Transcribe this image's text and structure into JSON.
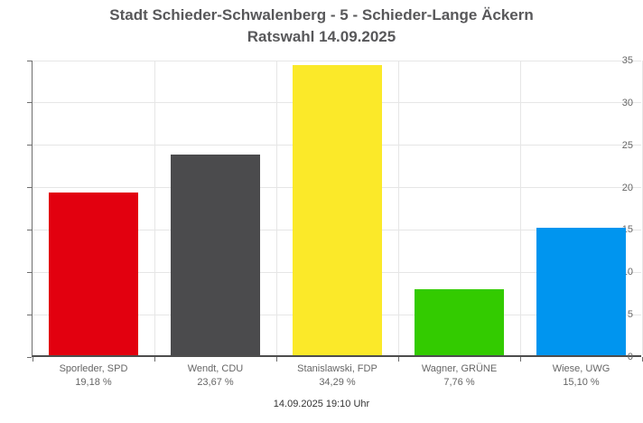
{
  "header": {
    "title_line1": "Stadt Schieder-Schwalenberg - 5 - Schieder-Lange Äckern",
    "title_line2": "Ratswahl 14.09.2025"
  },
  "footer": {
    "timestamp": "14.09.2025 19:10 Uhr"
  },
  "chart_data": {
    "type": "bar",
    "title": "Stadt Schieder-Schwalenberg - 5 - Schieder-Lange Äckern",
    "subtitle": "Ratswahl 14.09.2025",
    "categories": [
      "Sporleder, SPD",
      "Wendt, CDU",
      "Stanislawski, FDP",
      "Wagner, GRÜNE",
      "Wiese, UWG"
    ],
    "values": [
      19.18,
      23.67,
      34.29,
      7.76,
      15.1
    ],
    "value_labels": [
      "19,18 %",
      "23,67 %",
      "34,29 %",
      "7,76 %",
      "15,10 %"
    ],
    "bar_colors": [
      "#e2000f",
      "#4b4b4d",
      "#fbe929",
      "#33cb00",
      "#0095ef"
    ],
    "ylim": [
      0,
      35
    ],
    "yticks": [
      0,
      5,
      10,
      15,
      20,
      25,
      30,
      35
    ],
    "xlabel": "",
    "ylabel": "",
    "grid": true,
    "legend": false,
    "footer_timestamp": "14.09.2025 19:10 Uhr",
    "colors": {
      "gridline": "#e6e6e6",
      "axis": "#4d4d4d",
      "title_text": "#58585a",
      "axis_label_text": "#666666",
      "footer_text": "#333333"
    }
  }
}
